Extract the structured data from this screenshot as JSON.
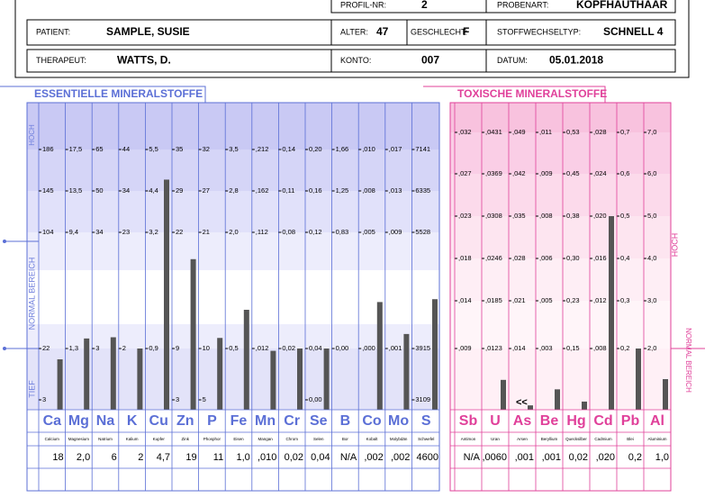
{
  "header": {
    "row0": [
      {
        "label": "PROFIL-NR:",
        "value": "2"
      },
      {
        "label": "PROBENART:",
        "value": "KOPFHAUTHAAR"
      }
    ],
    "row1": [
      {
        "label": "PATIENT:",
        "value": "SAMPLE, SUSIE"
      },
      {
        "label": "ALTER:",
        "value": "47"
      },
      {
        "label": "GESCHLECHT:",
        "value": "F"
      },
      {
        "label": "STOFFWECHSELTYP:",
        "value": "SCHNELL 4"
      }
    ],
    "row2": [
      {
        "label": "THERAPEUT:",
        "value": "WATTS, D."
      },
      {
        "label": "KONTO:",
        "value": "007"
      },
      {
        "label": "DATUM:",
        "value": "05.01.2018"
      }
    ]
  },
  "essential": {
    "title": "ESSENTIELLE MINERALSTOFFE",
    "side": [
      "HOCH",
      "NORMAL  BEREICH",
      "TIEF"
    ],
    "columns": [
      {
        "symbol": "Ca",
        "name": "Calcium",
        "ticks": [
          186,
          145,
          104,
          22,
          3
        ],
        "result": 18
      },
      {
        "symbol": "Mg",
        "name": "Magnesium",
        "ticks": [
          {
            "value": 17.5,
            "label": "17,5"
          },
          {
            "value": 13.5,
            "label": "13,5"
          },
          {
            "value": 9.4,
            "label": "9,4"
          },
          {
            "value": 1.3,
            "label": "1,3"
          }
        ],
        "result": {
          "value": 2.0,
          "label": "2,0"
        }
      },
      {
        "symbol": "Na",
        "name": "Natrium",
        "ticks": [
          65,
          50,
          34,
          3
        ],
        "result": 6
      },
      {
        "symbol": "K",
        "name": "Kalium",
        "ticks": [
          44,
          34,
          23,
          2
        ],
        "result": 2
      },
      {
        "symbol": "Cu",
        "name": "Kupfer",
        "ticks": [
          {
            "value": 5.5,
            "label": "5,5"
          },
          {
            "value": 4.4,
            "label": "4,4"
          },
          {
            "value": 3.2,
            "label": "3,2"
          },
          {
            "value": 0.9,
            "label": "0,9"
          }
        ],
        "result": {
          "value": 4.7,
          "label": "4,7"
        }
      },
      {
        "symbol": "Zn",
        "name": "Zink",
        "ticks": [
          35,
          29,
          22,
          9,
          3
        ],
        "result": 19
      },
      {
        "symbol": "P",
        "name": "Phosphor",
        "ticks": [
          32,
          27,
          21,
          10,
          5
        ],
        "result": 11
      },
      {
        "symbol": "Fe",
        "name": "Eisen",
        "ticks": [
          {
            "value": 3.5,
            "label": "3,5"
          },
          {
            "value": 2.8,
            "label": "2,8"
          },
          {
            "value": 2.0,
            "label": "2,0"
          },
          {
            "value": 0.5,
            "label": "0,5"
          }
        ],
        "result": {
          "value": 1.0,
          "label": "1,0"
        }
      },
      {
        "symbol": "Mn",
        "name": "Mangan",
        "ticks": [
          {
            "value": 0.212,
            "label": ",212"
          },
          {
            "value": 0.162,
            "label": ",162"
          },
          {
            "value": 0.112,
            "label": ",112"
          },
          {
            "value": 0.012,
            "label": ",012"
          }
        ],
        "result": {
          "value": 0.01,
          "label": ",010"
        }
      },
      {
        "symbol": "Cr",
        "name": "Chrom",
        "ticks": [
          {
            "value": 0.14,
            "label": "0,14"
          },
          {
            "value": 0.11,
            "label": "0,11"
          },
          {
            "value": 0.08,
            "label": "0,08"
          },
          {
            "value": 0.02,
            "label": "0,02"
          }
        ],
        "result": {
          "value": 0.02,
          "label": "0,02"
        }
      },
      {
        "symbol": "Se",
        "name": "Selen",
        "ticks": [
          {
            "value": 0.2,
            "label": "0,20"
          },
          {
            "value": 0.16,
            "label": "0,16"
          },
          {
            "value": 0.12,
            "label": "0,12"
          },
          {
            "value": 0.04,
            "label": "0,04"
          },
          {
            "value": 0,
            "label": "0,00"
          }
        ],
        "result": {
          "value": 0.04,
          "label": "0,04"
        }
      },
      {
        "symbol": "B",
        "name": "Bor",
        "ticks": [
          {
            "value": 1.66,
            "label": "1,66"
          },
          {
            "value": 1.25,
            "label": "1,25"
          },
          {
            "value": 0.83,
            "label": "0,83"
          },
          {
            "value": 0,
            "label": "0,00"
          }
        ],
        "result": {
          "value": null,
          "label": "N/A"
        }
      },
      {
        "symbol": "Co",
        "name": "Kobalt",
        "ticks": [
          {
            "value": 0.01,
            "label": ",010"
          },
          {
            "value": 0.008,
            "label": ",008"
          },
          {
            "value": 0.005,
            "label": ",005"
          },
          {
            "value": 0,
            "label": ",000"
          }
        ],
        "result": {
          "value": 0.002,
          "label": ",002"
        }
      },
      {
        "symbol": "Mo",
        "name": "Molybdän",
        "ticks": [
          {
            "value": 0.017,
            "label": ",017"
          },
          {
            "value": 0.013,
            "label": ",013"
          },
          {
            "value": 0.009,
            "label": ",009"
          },
          {
            "value": 0.001,
            "label": ",001"
          }
        ],
        "result": {
          "value": 0.002,
          "label": ",002"
        }
      },
      {
        "symbol": "S",
        "name": "Schwefel",
        "ticks": [
          7141,
          6335,
          5528,
          3915,
          3109
        ],
        "result": 4600
      }
    ]
  },
  "toxic": {
    "title": "TOXISCHE MINERALSTOFFE",
    "side": [
      "HOCH",
      "NORMAL BEREICH"
    ],
    "columns": [
      {
        "symbol": "Sb",
        "name": "Antimon",
        "ticks": [
          {
            "value": 0.032,
            "label": ",032"
          },
          {
            "value": 0.027,
            "label": ",027"
          },
          {
            "value": 0.023,
            "label": ",023"
          },
          {
            "value": 0.018,
            "label": ",018"
          },
          {
            "value": 0.014,
            "label": ",014"
          },
          {
            "value": 0.009,
            "label": ",009"
          }
        ],
        "result": {
          "value": null,
          "label": "N/A"
        }
      },
      {
        "symbol": "U",
        "name": "Uran",
        "ticks": [
          {
            "value": 0.0431,
            "label": ",0431"
          },
          {
            "value": 0.0369,
            "label": ",0369"
          },
          {
            "value": 0.0308,
            "label": ",0308"
          },
          {
            "value": 0.0246,
            "label": ",0246"
          },
          {
            "value": 0.0185,
            "label": ",0185"
          },
          {
            "value": 0.0123,
            "label": ",0123"
          }
        ],
        "result": {
          "value": 0.006,
          "label": ",0060"
        }
      },
      {
        "symbol": "As",
        "name": "Arsen",
        "ticks": [
          {
            "value": 0.049,
            "label": ",049"
          },
          {
            "value": 0.042,
            "label": ",042"
          },
          {
            "value": 0.035,
            "label": ",035"
          },
          {
            "value": 0.028,
            "label": ",028"
          },
          {
            "value": 0.021,
            "label": ",021"
          },
          {
            "value": 0.014,
            "label": ",014"
          }
        ],
        "result": {
          "value": 0.001,
          "label": ",001"
        },
        "marker": "<<"
      },
      {
        "symbol": "Be",
        "name": "Beryllium",
        "ticks": [
          {
            "value": 0.011,
            "label": ",011"
          },
          {
            "value": 0.009,
            "label": ",009"
          },
          {
            "value": 0.008,
            "label": ",008"
          },
          {
            "value": 0.006,
            "label": ",006"
          },
          {
            "value": 0.005,
            "label": ",005"
          },
          {
            "value": 0.003,
            "label": ",003"
          }
        ],
        "result": {
          "value": 0.001,
          "label": ",001"
        }
      },
      {
        "symbol": "Hg",
        "name": "Quecksilber",
        "ticks": [
          {
            "value": 0.53,
            "label": "0,53"
          },
          {
            "value": 0.45,
            "label": "0,45"
          },
          {
            "value": 0.38,
            "label": "0,38"
          },
          {
            "value": 0.3,
            "label": "0,30"
          },
          {
            "value": 0.23,
            "label": "0,23"
          },
          {
            "value": 0.15,
            "label": "0,15"
          }
        ],
        "result": {
          "value": 0.02,
          "label": "0,02"
        }
      },
      {
        "symbol": "Cd",
        "name": "Cadmium",
        "ticks": [
          {
            "value": 0.028,
            "label": ",028"
          },
          {
            "value": 0.024,
            "label": ",024"
          },
          {
            "value": 0.02,
            "label": ",020"
          },
          {
            "value": 0.016,
            "label": ",016"
          },
          {
            "value": 0.012,
            "label": ",012"
          },
          {
            "value": 0.008,
            "label": ",008"
          }
        ],
        "result": {
          "value": 0.02,
          "label": ",020"
        }
      },
      {
        "symbol": "Pb",
        "name": "Blei",
        "ticks": [
          {
            "value": 0.7,
            "label": "0,7"
          },
          {
            "value": 0.6,
            "label": "0,6"
          },
          {
            "value": 0.5,
            "label": "0,5"
          },
          {
            "value": 0.4,
            "label": "0,4"
          },
          {
            "value": 0.3,
            "label": "0,3"
          },
          {
            "value": 0.2,
            "label": "0,2"
          }
        ],
        "result": {
          "value": 0.2,
          "label": "0,2"
        }
      },
      {
        "symbol": "Al",
        "name": "Aluminium",
        "ticks": [
          {
            "value": 7.0,
            "label": "7,0"
          },
          {
            "value": 6.0,
            "label": "6,0"
          },
          {
            "value": 5.0,
            "label": "5,0"
          },
          {
            "value": 4.0,
            "label": "4,0"
          },
          {
            "value": 3.0,
            "label": "3,0"
          },
          {
            "value": 2.0,
            "label": "2,0"
          }
        ],
        "result": {
          "value": 1.0,
          "label": "1,0"
        }
      }
    ]
  }
}
